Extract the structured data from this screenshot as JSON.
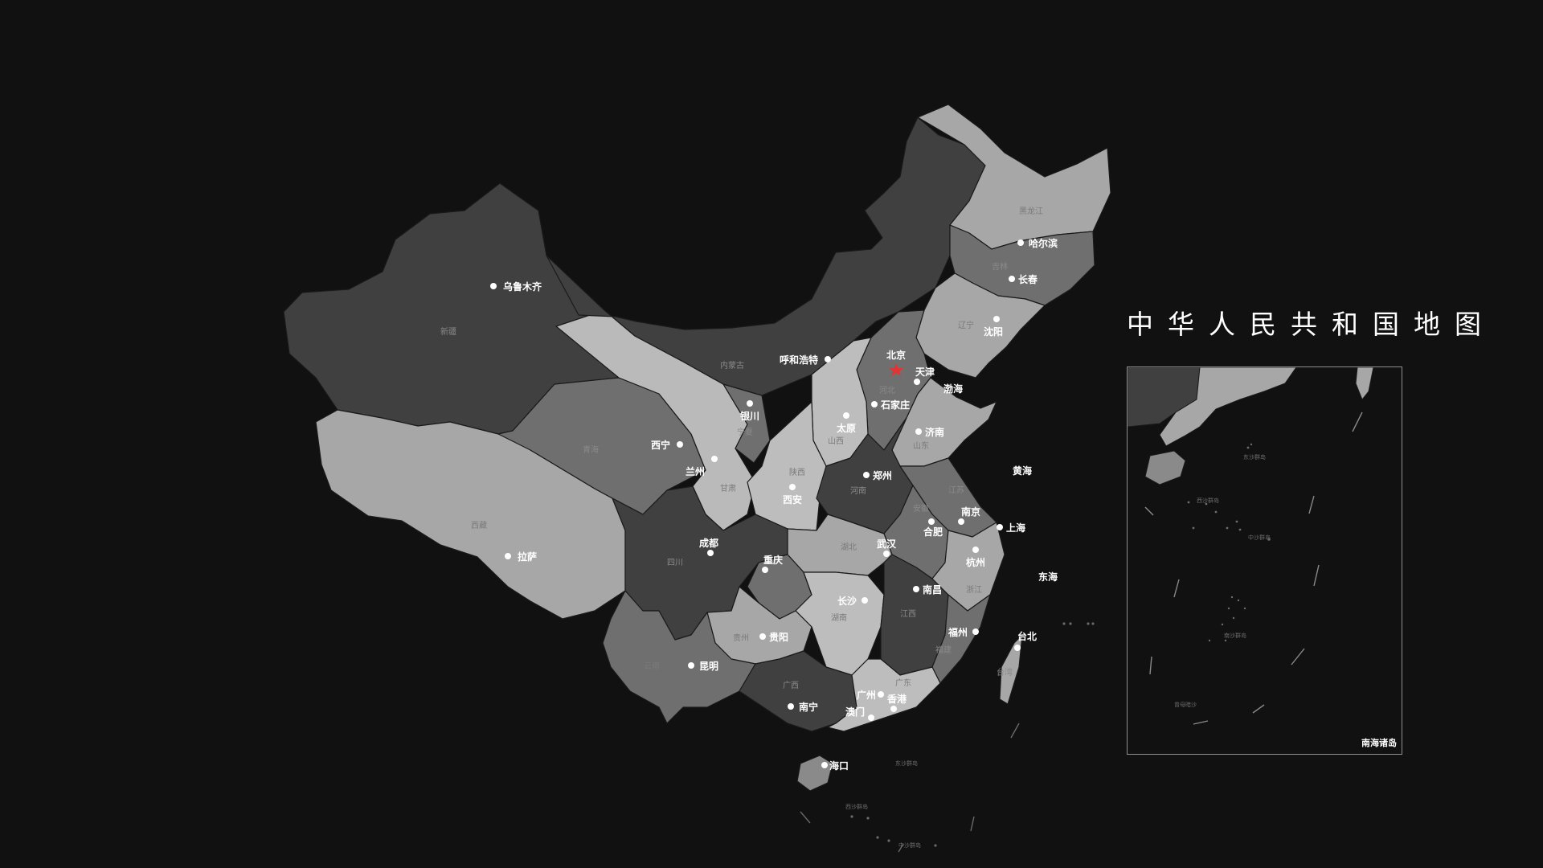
{
  "title": "中华人民共和国地图",
  "capital_label": "北京",
  "inset": {
    "label": "南海诸岛"
  },
  "colors": {
    "background": "#111111",
    "capital_star": "#e03535",
    "dark": "#3f3f3f",
    "mid": "#6e6e6e",
    "light": "#a6a6a6",
    "lighter": "#bdbdbd"
  },
  "cities": [
    "乌鲁木齐",
    "拉萨",
    "西宁",
    "兰州",
    "银川",
    "呼和浩特",
    "天津",
    "石家庄",
    "太原",
    "济南",
    "郑州",
    "西安",
    "成都",
    "重庆",
    "武汉",
    "合肥",
    "南京",
    "上海",
    "杭州",
    "南昌",
    "长沙",
    "贵阳",
    "昆明",
    "南宁",
    "广州",
    "香港",
    "澳门",
    "福州",
    "台北",
    "海口",
    "沈阳",
    "长春",
    "哈尔滨"
  ],
  "provinces": [
    "新疆",
    "西藏",
    "青海",
    "甘肃",
    "宁夏",
    "内蒙古",
    "四川",
    "云南",
    "贵州",
    "广西",
    "广东",
    "海南",
    "湖南",
    "湖北",
    "陕西",
    "山西",
    "河北",
    "河南",
    "山东",
    "江苏",
    "安徽",
    "浙江",
    "江西",
    "福建",
    "台湾",
    "辽宁",
    "吉林",
    "黑龙江"
  ],
  "seas": [
    "渤海",
    "黄海",
    "东海"
  ],
  "islands": [
    "东沙群岛",
    "西沙群岛",
    "中沙群岛",
    "南沙群岛",
    "曾母暗沙"
  ]
}
